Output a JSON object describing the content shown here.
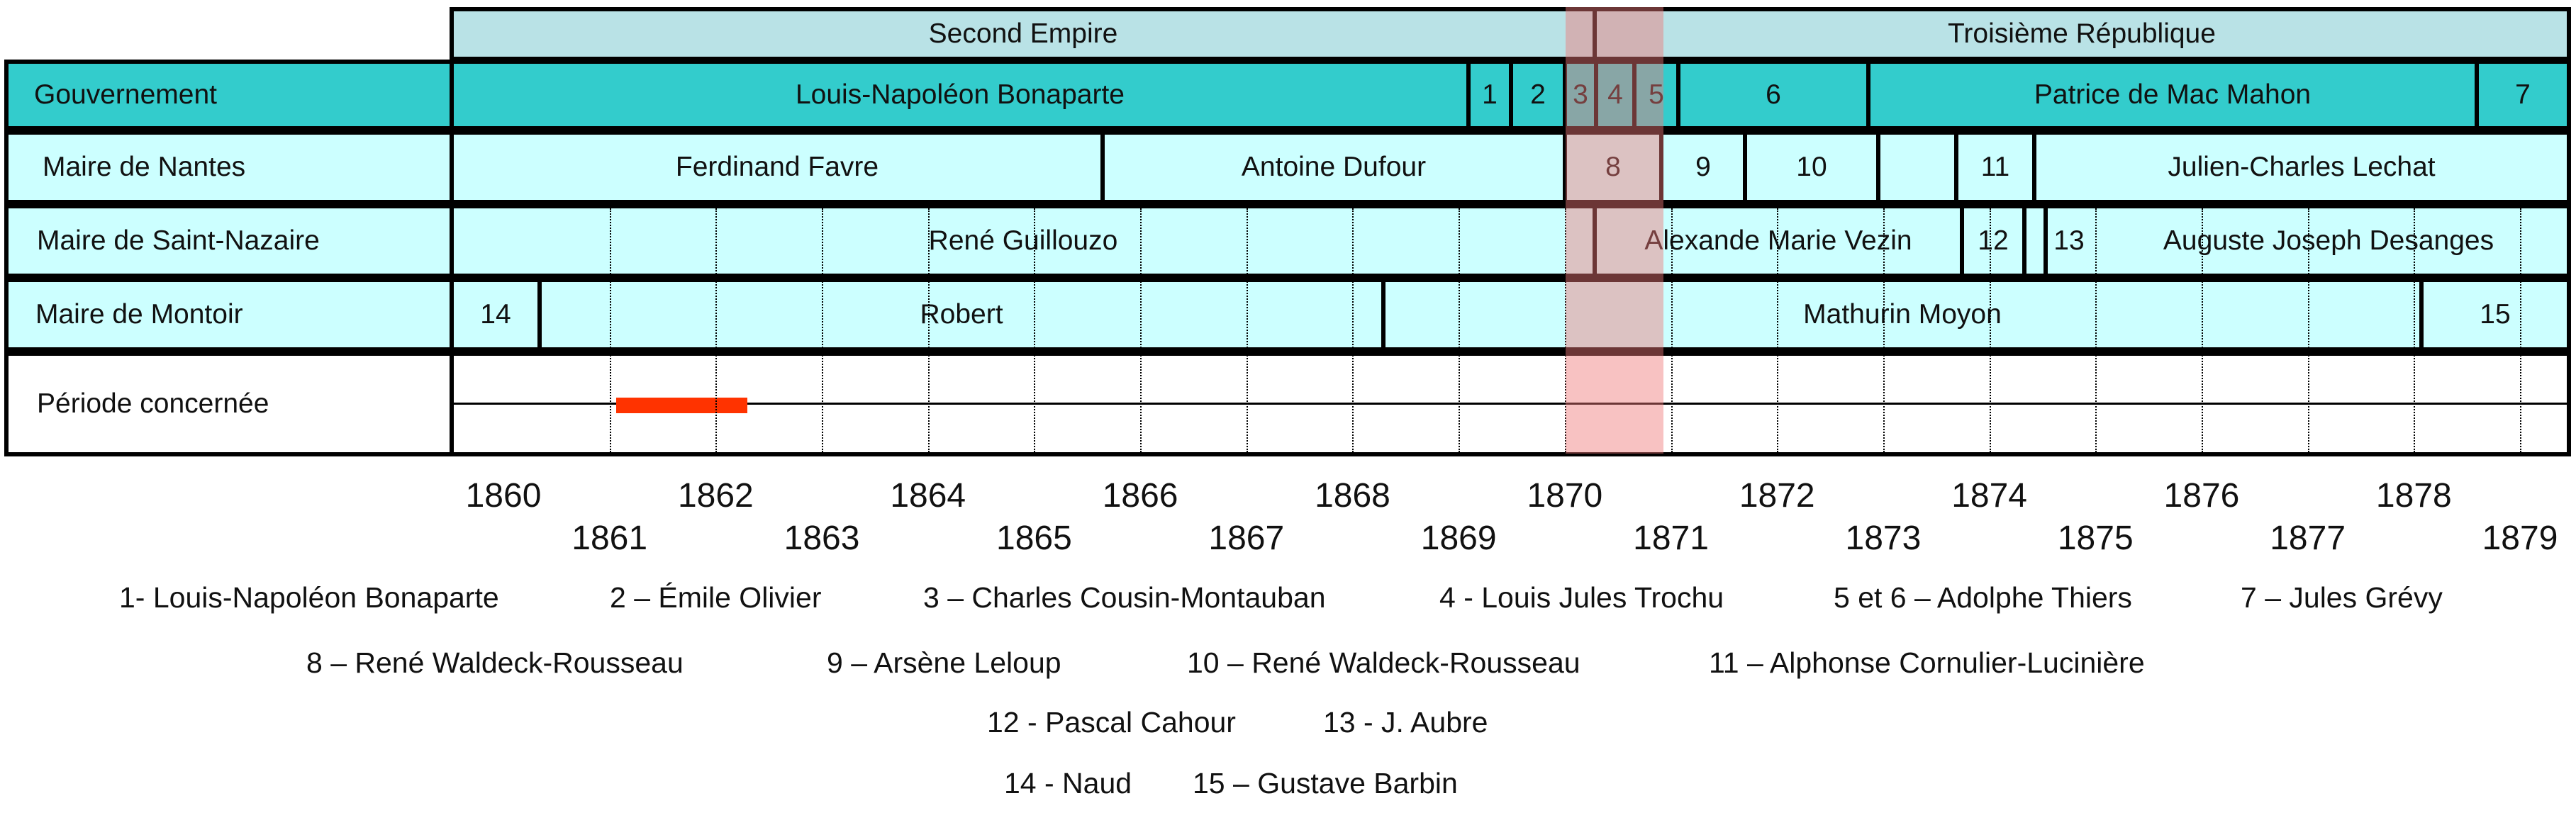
{
  "top_bands": [
    {
      "id": "second-empire",
      "label": "Second Empire"
    },
    {
      "id": "troisieme-republique",
      "label": "Troisième République"
    }
  ],
  "rows": {
    "gouvernement": {
      "label": "Gouvernement",
      "segments": [
        {
          "label": "Louis-Napoléon Bonaparte"
        },
        {
          "label": "1"
        },
        {
          "label": "2"
        },
        {
          "label": "3"
        },
        {
          "label": "4"
        },
        {
          "label": "5"
        },
        {
          "label": "6"
        },
        {
          "label": "Patrice de Mac Mahon"
        },
        {
          "label": "7"
        }
      ]
    },
    "nantes": {
      "label": "Maire de Nantes",
      "segments": [
        {
          "label": "Ferdinand Favre"
        },
        {
          "label": "Antoine Dufour"
        },
        {
          "label": "8"
        },
        {
          "label": "9"
        },
        {
          "label": "10"
        },
        {
          "label": ""
        },
        {
          "label": "11"
        },
        {
          "label": "Julien-Charles Lechat"
        }
      ]
    },
    "saint_nazaire": {
      "label": "Maire de Saint-Nazaire",
      "segments": [
        {
          "label": "René Guillouzo"
        },
        {
          "label": "Alexande Marie Vezin"
        },
        {
          "label": "12"
        },
        {
          "label": ""
        },
        {
          "label": "13"
        },
        {
          "label": "Auguste Joseph Desanges"
        }
      ]
    },
    "montoir": {
      "label": "Maire de Montoir",
      "segments": [
        {
          "label": "14"
        },
        {
          "label": "Robert"
        },
        {
          "label": "Mathurin Moyon"
        },
        {
          "label": "15"
        }
      ]
    },
    "periode": {
      "label": "Période concernée",
      "range": [
        1861.85,
        1863.1
      ]
    }
  },
  "years_even": [
    "1860",
    "1862",
    "1864",
    "1866",
    "1868",
    "1870",
    "1872",
    "1874",
    "1876",
    "1878"
  ],
  "years_odd": [
    "1861",
    "1863",
    "1865",
    "1867",
    "1869",
    "1871",
    "1873",
    "1875",
    "1877",
    "1879"
  ],
  "legend": [
    [
      "1- Louis-Napoléon Bonaparte",
      "2 – Émile Olivier",
      "3 – Charles Cousin-Montauban",
      "4 - Louis Jules Trochu",
      "5 et 6 – Adolphe Thiers",
      "7 – Jules Grévy"
    ],
    [
      "8 – René Waldeck-Rousseau",
      "9 – Arsène Leloup",
      "10 – René Waldeck-Rousseau",
      "11 – Alphonse Cornulier-Lucinière"
    ],
    [
      "12 - Pascal Cahour",
      "13 - J. Aubre"
    ],
    [
      "14 - Naud",
      "15 – Gustave Barbin"
    ]
  ],
  "colors": {
    "dark": "#33cccc",
    "light": "#ccffff",
    "pale": "#b9e2e6",
    "period_bar": "#ff3300",
    "highlight": "#f07878"
  }
}
